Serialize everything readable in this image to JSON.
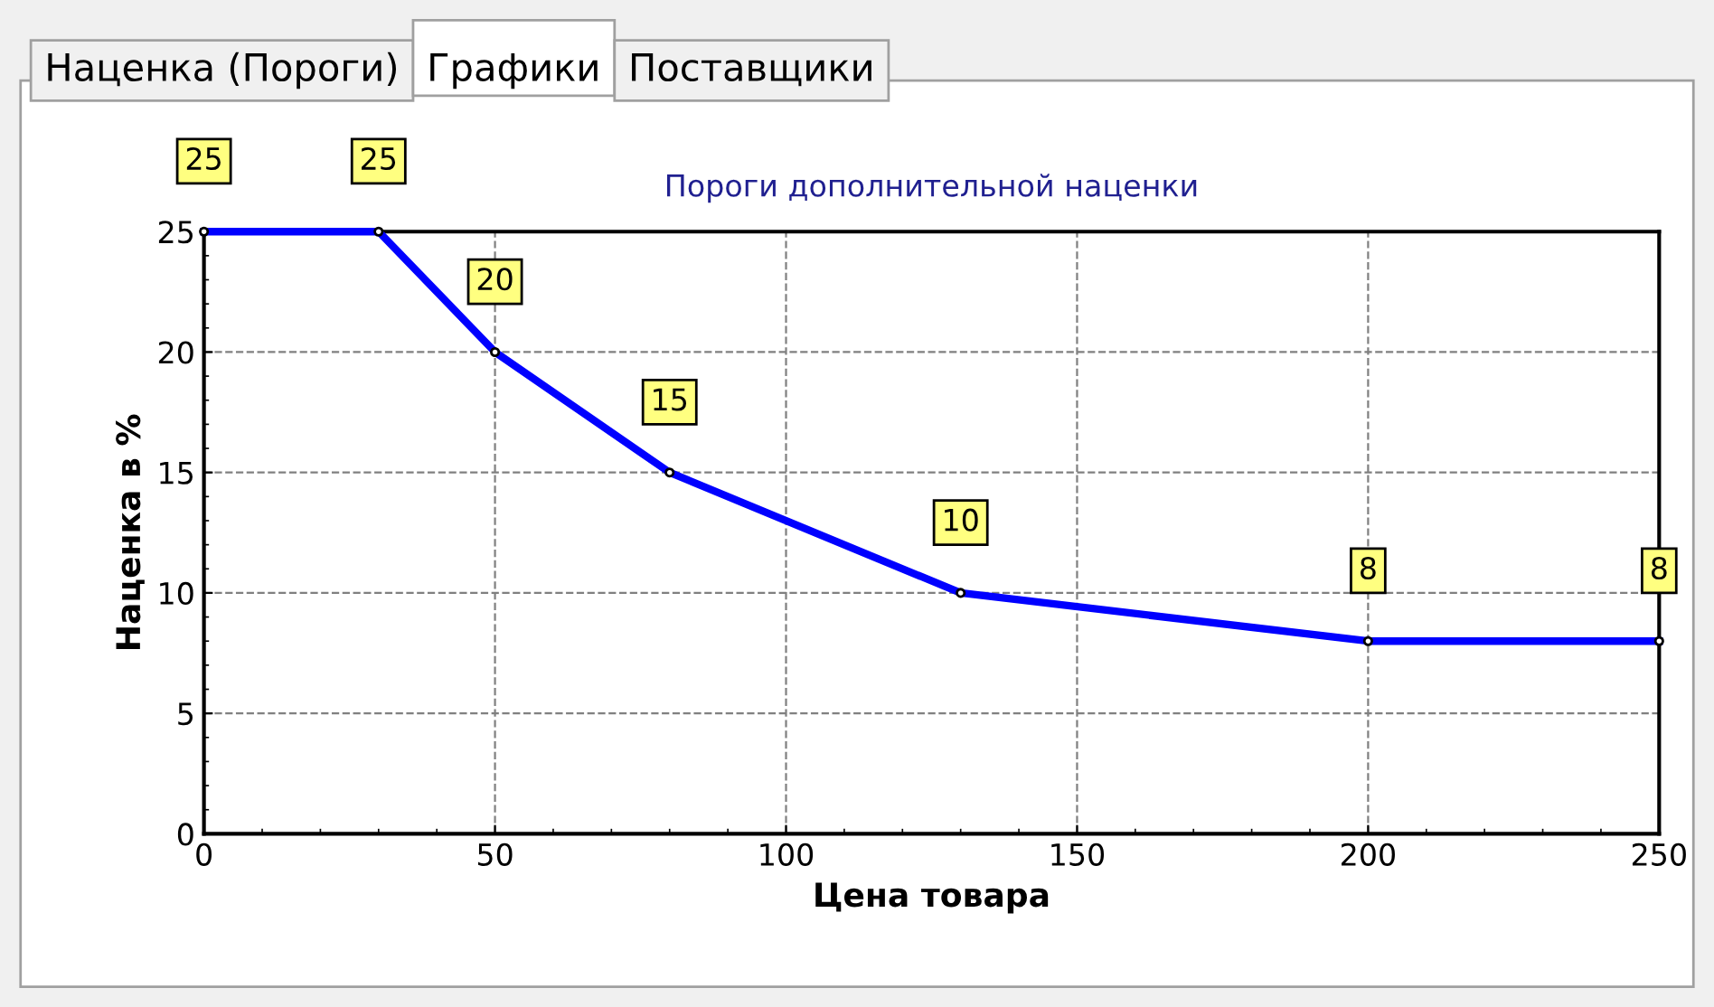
{
  "chart_data": {
    "type": "line",
    "title": "Пороги дополнительной наценки",
    "xlabel": "Цена товара",
    "ylabel": "Наценка в %",
    "annotations": [
      "Наценка (Пороги)",
      "Графики",
      "Поставщики"
    ],
    "x": [
      0,
      30,
      50,
      80,
      130,
      200,
      250
    ],
    "series": [
      {
        "color": "#0000ff",
        "values": [
          25,
          25,
          20,
          15,
          10,
          8,
          8
        ]
      }
    ],
    "xlim": [
      0,
      250
    ],
    "ylim": [
      0,
      25
    ],
    "xticks": [
      0,
      50,
      100,
      150,
      200,
      250
    ],
    "yticks": [
      0,
      5,
      10,
      15,
      20,
      25
    ],
    "grid": true,
    "data_labels": true,
    "marker": "circle",
    "line_style": "solid"
  }
}
